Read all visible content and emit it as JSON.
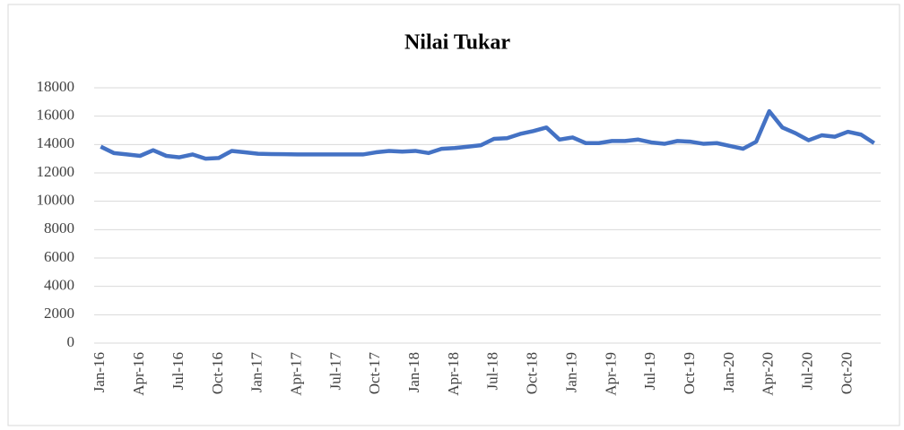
{
  "chart_data": {
    "type": "line",
    "title": "Nilai Tukar",
    "categories": [
      "Jan-16",
      null,
      null,
      "Apr-16",
      null,
      null,
      "Jul-16",
      null,
      null,
      "Oct-16",
      null,
      null,
      "Jan-17",
      null,
      null,
      "Apr-17",
      null,
      null,
      "Jul-17",
      null,
      null,
      "Oct-17",
      null,
      null,
      "Jan-18",
      null,
      null,
      "Apr-18",
      null,
      null,
      "Jul-18",
      null,
      null,
      "Oct-18",
      null,
      null,
      "Jan-19",
      null,
      null,
      "Apr-19",
      null,
      null,
      "Jul-19",
      null,
      null,
      "Oct-19",
      null,
      null,
      "Jan-20",
      null,
      null,
      "Apr-20",
      null,
      null,
      "Jul-20",
      null,
      null,
      "Oct-20",
      null,
      null
    ],
    "series": [
      {
        "name": "Nilai Tukar",
        "color": "#4472c4",
        "values": [
          13850,
          13400,
          13300,
          13200,
          13600,
          13200,
          13100,
          13300,
          13000,
          13050,
          13550,
          13450,
          13350,
          13330,
          13320,
          13300,
          13300,
          13300,
          13300,
          13300,
          13300,
          13450,
          13550,
          13500,
          13550,
          13400,
          13700,
          13750,
          13850,
          13950,
          14400,
          14450,
          14750,
          14950,
          15200,
          14350,
          14500,
          14100,
          14100,
          14250,
          14250,
          14350,
          14150,
          14050,
          14250,
          14200,
          14050,
          14100,
          13900,
          13700,
          14200,
          16350,
          15200,
          14800,
          14300,
          14650,
          14550,
          14900,
          14700,
          14100
        ]
      }
    ],
    "ylim": [
      0,
      18000
    ],
    "yticks": [
      0,
      2000,
      4000,
      6000,
      8000,
      10000,
      12000,
      14000,
      16000,
      18000
    ],
    "grid": true
  }
}
